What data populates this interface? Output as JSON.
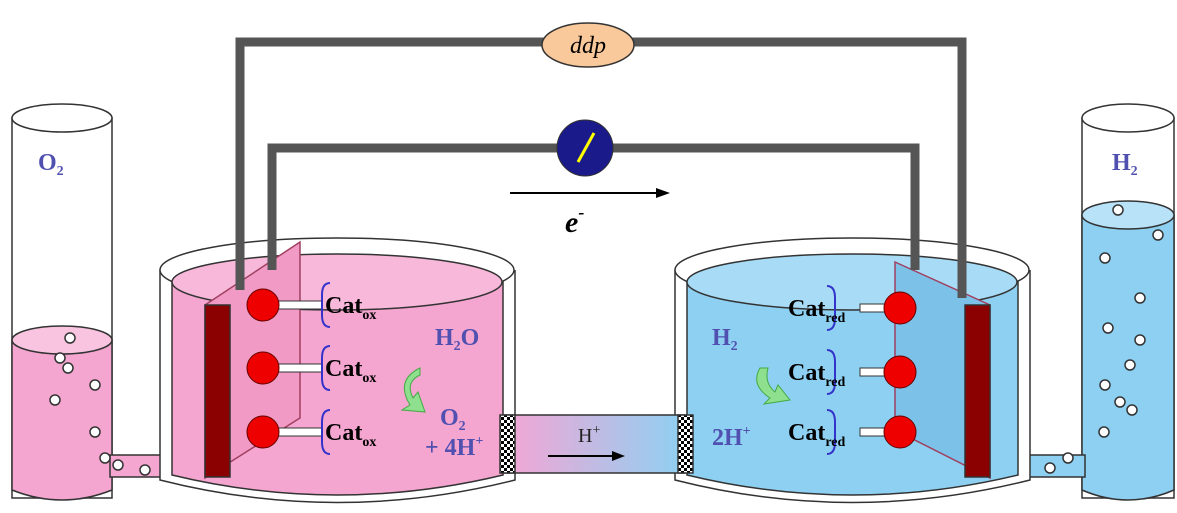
{
  "voltage_label": "ddp",
  "electron": {
    "base": "e",
    "sup": "-"
  },
  "left_tube": {
    "gas": {
      "base": "O",
      "sub": "2"
    }
  },
  "right_tube": {
    "gas": {
      "base": "H",
      "sub": "2"
    }
  },
  "anode": {
    "catalysts": [
      {
        "base": "Cat",
        "sub": "ox"
      },
      {
        "base": "Cat",
        "sub": "ox"
      },
      {
        "base": "Cat",
        "sub": "ox"
      }
    ],
    "reactant": {
      "base": "H",
      "sub": "2",
      "rest": "O"
    },
    "products": {
      "line1": {
        "base": "O",
        "sub": "2"
      },
      "line2": {
        "base": "+ 4H",
        "sup": "+"
      }
    }
  },
  "bridge": {
    "ion": {
      "base": "H",
      "sup": "+"
    }
  },
  "cathode": {
    "catalysts": [
      {
        "base": "Cat",
        "sub": "red"
      },
      {
        "base": "Cat",
        "sub": "red"
      },
      {
        "base": "Cat",
        "sub": "red"
      }
    ],
    "product": {
      "base": "H",
      "sub": "2"
    },
    "reactant": {
      "base": "2H",
      "sup": "+"
    }
  }
}
